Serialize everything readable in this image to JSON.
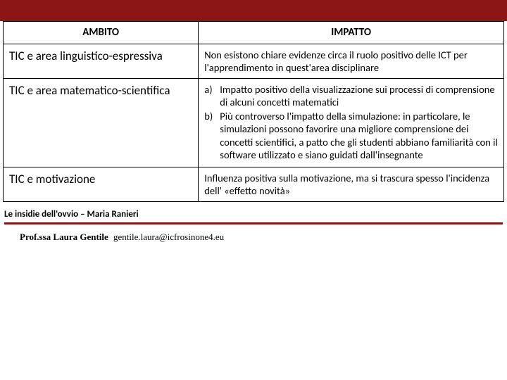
{
  "colors": {
    "topbar_bg": "#8c1616",
    "rule_color": "#8c1616",
    "border_color": "#000000",
    "text_color": "#000000",
    "background": "#ffffff"
  },
  "typography": {
    "th_fontsize": 15,
    "left_cell_fontsize": 17,
    "right_cell_fontsize": 14.5,
    "source_fontsize": 13,
    "footer_fontsize": 13
  },
  "table": {
    "col_widths_pct": [
      39,
      61
    ],
    "headers": {
      "ambito": "AMBITO",
      "impatto": "IMPATTO"
    },
    "rows": [
      {
        "ambito": "TIC e area linguistico-espressiva",
        "impatto_type": "text",
        "impatto": "Non esistono chiare evidenze circa il ruolo positivo delle ICT per l'apprendimento in quest'area disciplinare"
      },
      {
        "ambito": "TIC e area matematico-scientifica",
        "impatto_type": "list",
        "impatto_items": [
          {
            "marker": "a)",
            "text": "Impatto positivo della visualizzazione sui processi di comprensione di alcuni concetti matematici"
          },
          {
            "marker": "b)",
            "text": "Più controverso l'impatto della simulazione: in particolare, le simulazioni possono favorire una migliore comprensione dei concetti scientifici, a patto che gli studenti abbiano familiarità con il software utilizzato e siano guidati dall'insegnante"
          }
        ]
      },
      {
        "ambito": "TIC e motivazione",
        "impatto_type": "text",
        "impatto": "Influenza positiva sulla motivazione, ma si trascura spesso l'incidenza dell' «effetto novità»"
      }
    ]
  },
  "source_line": "Le insidie dell'ovvio – Maria Ranieri",
  "footer": {
    "name": "Prof.ssa Laura Gentile",
    "email": "gentile.laura@icfrosinone4.eu"
  }
}
